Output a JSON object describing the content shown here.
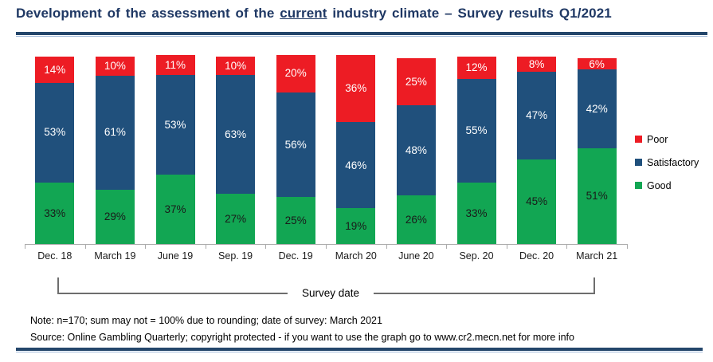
{
  "title": {
    "pre": "Development of the assessment of the ",
    "underlined": "current",
    "post": " industry climate – Survey results Q1/2021"
  },
  "chart_data": {
    "type": "bar",
    "subtype": "stacked-percent",
    "title": "Development of the assessment of the current industry climate – Survey results Q1/2021",
    "categories": [
      "Dec. 18",
      "March 19",
      "June 19",
      "Sep. 19",
      "Dec. 19",
      "March 20",
      "June 20",
      "Sep. 20",
      "Dec. 20",
      "March 21"
    ],
    "series": [
      {
        "name": "Good",
        "color": "#12A653",
        "label_color": "#1A1A1A",
        "values": [
          33,
          29,
          37,
          27,
          25,
          19,
          26,
          33,
          45,
          51
        ]
      },
      {
        "name": "Satisfactory",
        "color": "#20507C",
        "label_color": "#FFFFFF",
        "values": [
          53,
          61,
          53,
          63,
          56,
          46,
          48,
          55,
          47,
          42
        ]
      },
      {
        "name": "Poor",
        "color": "#ED1C24",
        "label_color": "#FFFFFF",
        "values": [
          14,
          10,
          11,
          10,
          20,
          36,
          25,
          12,
          8,
          6
        ]
      }
    ],
    "legend": [
      "Poor",
      "Satisfactory",
      "Good"
    ],
    "legend_position": "right",
    "value_format": "percent",
    "xlabel": "Survey date",
    "ylabel": "",
    "ylim": [
      0,
      100
    ],
    "grid": false
  },
  "bracket": {
    "label": "Survey date"
  },
  "notes": {
    "note": "Note: n=170; sum may not = 100% due to rounding; date of survey: March 2021",
    "source": "Source: Online Gambling Quarterly; copyright protected - if you want to use the graph go to www.cr2.mecn.net for more info"
  },
  "colors": {
    "title_navy": "#1F3864",
    "rule_navy": "#24466B",
    "poor_red": "#ED1C24",
    "satisfactory_blue": "#20507C",
    "good_green": "#12A653"
  }
}
